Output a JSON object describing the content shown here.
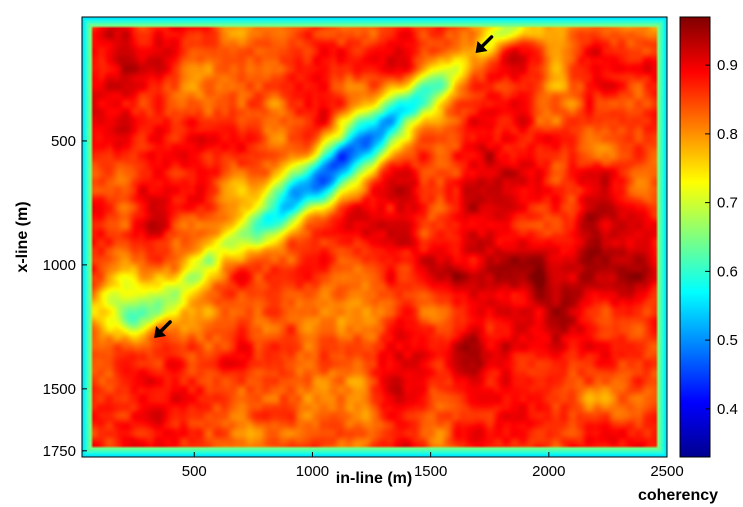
{
  "chart_data": {
    "type": "heatmap",
    "title": "",
    "xlabel": "in-line (m)",
    "ylabel": "x-line (m)",
    "colorbar_label": "coherency",
    "xlim": [
      25,
      2500
    ],
    "ylim": [
      1775,
      0
    ],
    "x_ticks": [
      500,
      1000,
      1500,
      2000,
      2500
    ],
    "y_ticks": [
      500,
      1000,
      1500,
      1750
    ],
    "colorbar_range": [
      0.33,
      0.97
    ],
    "colorbar_ticks": [
      0.4,
      0.5,
      0.6,
      0.7,
      0.8,
      0.9
    ],
    "colormap": "jet",
    "grid": false,
    "features": [
      {
        "type": "low-coherency lineament",
        "from": {
          "x": 260,
          "y": 1230
        },
        "to": {
          "x": 1850,
          "y": 30
        }
      },
      {
        "type": "arrow",
        "x": 330,
        "y": 1295,
        "points": "lower-left"
      },
      {
        "type": "arrow",
        "x": 1690,
        "y": 145,
        "points": "lower-left"
      }
    ]
  }
}
